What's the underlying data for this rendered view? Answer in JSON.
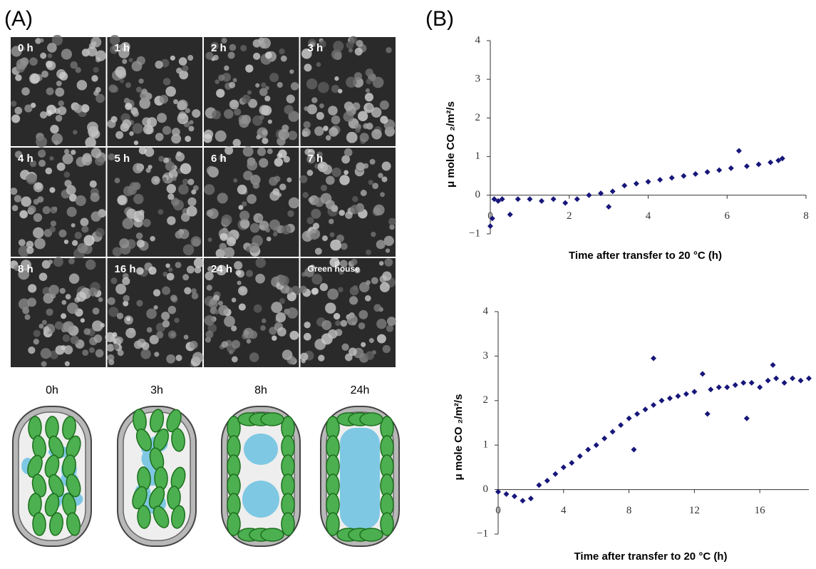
{
  "panel_a": {
    "label": "(A)",
    "micrographs": [
      "0 h",
      "1 h",
      "2 h",
      "3 h",
      "4 h",
      "5 h",
      "6 h",
      "7 h",
      "8 h",
      "16 h",
      "24 h",
      "Green house"
    ],
    "diagrams": [
      "0h",
      "3h",
      "8h",
      "24h"
    ]
  },
  "panel_b": {
    "label": "(B)"
  },
  "chart_data": [
    {
      "type": "scatter",
      "color": "#16167a",
      "xlabel": "Time after transfer to 20    °C (h)",
      "ylabel": "μ mole CO ₂/m²/s",
      "xlim": [
        0,
        8
      ],
      "ylim": [
        -1,
        4
      ],
      "xticks": [
        0,
        2,
        4,
        6,
        8
      ],
      "yticks": [
        {
          "value": -1,
          "label": "−1"
        },
        0,
        1,
        2,
        3,
        4
      ],
      "x": [
        0,
        0.05,
        0.1,
        0.2,
        0.3,
        0.5,
        0.7,
        1.0,
        1.3,
        1.6,
        1.9,
        2.2,
        2.5,
        2.8,
        3.1,
        3.0,
        3.4,
        3.7,
        4.0,
        4.3,
        4.6,
        4.9,
        5.2,
        5.5,
        5.8,
        6.1,
        6.3,
        6.5,
        6.8,
        7.1,
        7.3,
        7.4
      ],
      "values": [
        -0.8,
        -0.6,
        -0.1,
        -0.15,
        -0.1,
        -0.5,
        -0.1,
        -0.1,
        -0.15,
        -0.1,
        -0.2,
        -0.1,
        0,
        0.05,
        0.1,
        -0.3,
        0.25,
        0.3,
        0.35,
        0.4,
        0.45,
        0.5,
        0.55,
        0.6,
        0.65,
        0.7,
        1.15,
        0.75,
        0.8,
        0.85,
        0.9,
        0.95
      ]
    },
    {
      "type": "scatter",
      "color": "#16167a",
      "xlabel": "Time after transfer to 20    °C (h)",
      "ylabel": "μ mole CO ₂/m²/s",
      "xlim": [
        0,
        19
      ],
      "ylim": [
        -1,
        4
      ],
      "xticks": [
        0,
        4,
        8,
        12,
        16
      ],
      "yticks": [
        {
          "value": -1,
          "label": "−1"
        },
        0,
        1,
        2,
        3,
        4
      ],
      "x": [
        0,
        0.5,
        1,
        1.5,
        2,
        2.5,
        3,
        3.5,
        4,
        4.5,
        5,
        5.5,
        6,
        6.5,
        7,
        7.5,
        8,
        8.5,
        9,
        9.5,
        9.5,
        10,
        10.5,
        11,
        11.5,
        12,
        12.5,
        13,
        13.5,
        14,
        14.5,
        15,
        15.5,
        16,
        16.5,
        17,
        17.5,
        18,
        18.5,
        19,
        8.3,
        12.8,
        16.8,
        15.2
      ],
      "values": [
        -0.05,
        -0.1,
        -0.15,
        -0.25,
        -0.2,
        0.1,
        0.2,
        0.35,
        0.5,
        0.6,
        0.75,
        0.9,
        1.0,
        1.15,
        1.3,
        1.45,
        1.6,
        1.7,
        1.8,
        2.95,
        1.9,
        2.0,
        2.05,
        2.1,
        2.15,
        2.2,
        2.6,
        2.25,
        2.3,
        2.3,
        2.35,
        2.4,
        2.4,
        2.3,
        2.45,
        2.5,
        2.4,
        2.5,
        2.45,
        2.5,
        0.9,
        1.7,
        2.8,
        1.6
      ]
    }
  ]
}
